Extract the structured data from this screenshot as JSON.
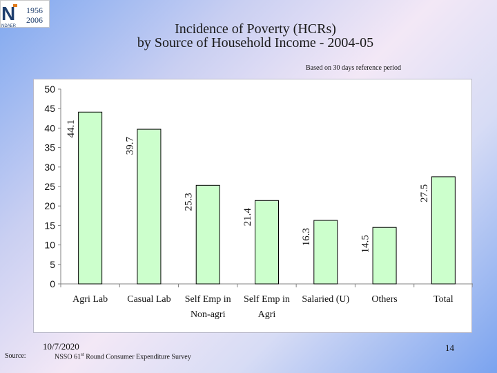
{
  "header": {
    "title_line1": "Incidence of Poverty (HCRs)",
    "title_line2": "by Source of Household Income - 2004-05",
    "reference_note": "Based on 30 days reference period"
  },
  "logo": {
    "letter": "N",
    "year_top": "1956",
    "year_bottom": "2006",
    "org_text": "NDAER",
    "colors": {
      "dark": "#1f3f6e",
      "accent": "#e07a1a"
    }
  },
  "footer": {
    "date": "10/7/2020",
    "source_label": "Source:",
    "source_pre": "NSSO 61",
    "source_sup": "st",
    "source_post": " Round Consumer Expenditure Survey",
    "page_number": "14"
  },
  "chart_data": {
    "type": "bar",
    "categories": [
      [
        "Agri Lab"
      ],
      [
        "Casual Lab"
      ],
      [
        "Self Emp in",
        "Non-agri"
      ],
      [
        "Self Emp in",
        "Agri"
      ],
      [
        "Salaried (U)"
      ],
      [
        "Others"
      ],
      [
        "Total"
      ]
    ],
    "values": [
      44.1,
      39.7,
      25.3,
      21.4,
      16.3,
      14.5,
      27.5
    ],
    "data_labels": [
      "44.1",
      "39.7",
      "25.3",
      "21.4",
      "16.3",
      "14.5",
      "27.5"
    ],
    "ylim": [
      0,
      50
    ],
    "yticks": [
      0,
      5,
      10,
      15,
      20,
      25,
      30,
      35,
      40,
      45,
      50
    ],
    "grid": false,
    "bar_color": "#ccffcc",
    "bar_edge_color": "#000000"
  }
}
